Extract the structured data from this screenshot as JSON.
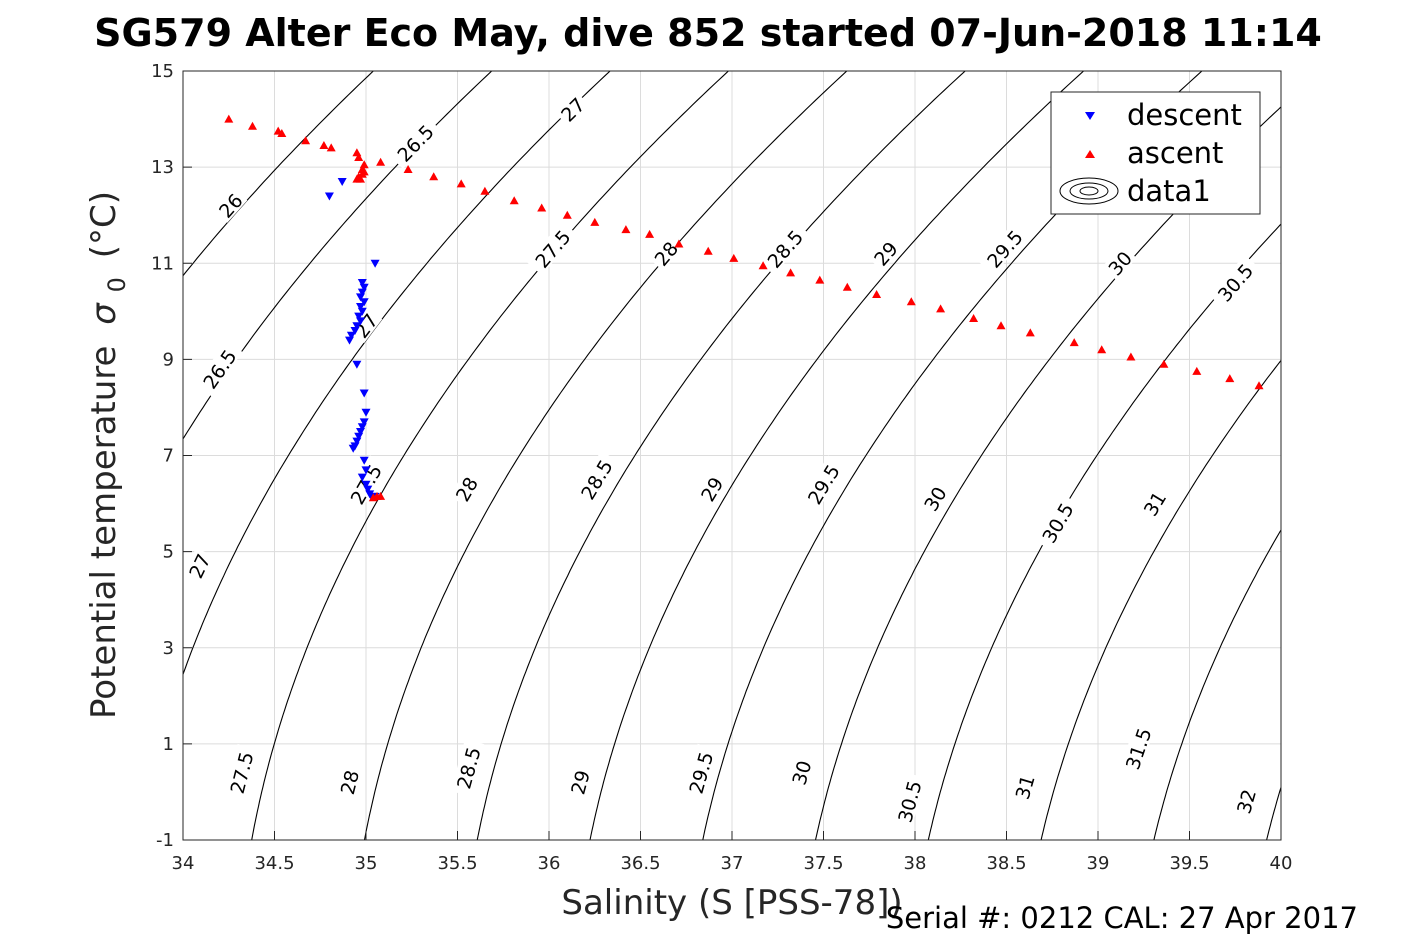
{
  "chart_data": {
    "type": "scatter",
    "title": "SG579 Alter Eco May, dive 852 started 07-Jun-2018 11:14",
    "xlabel": "Salinity (S [PSS-78])",
    "ylabel": "Potential temperature",
    "ylabel_symbol": "σ",
    "ylabel_subscript": "0",
    "ylabel_unit": "(°C)",
    "xlim": [
      34,
      40
    ],
    "ylim": [
      -1,
      15
    ],
    "x_ticks": [
      34,
      34.5,
      35,
      35.5,
      36,
      36.5,
      37,
      37.5,
      38,
      38.5,
      39,
      39.5,
      40
    ],
    "x_tick_labels": [
      "34",
      "34.5",
      "35",
      "35.5",
      "36",
      "36.5",
      "37",
      "37.5",
      "38",
      "38.5",
      "39",
      "39.5",
      "40"
    ],
    "y_ticks": [
      -1,
      1,
      3,
      5,
      7,
      9,
      11,
      13,
      15
    ],
    "y_tick_labels": [
      "-1",
      "1",
      "3",
      "5",
      "7",
      "9",
      "11",
      "13",
      "15"
    ],
    "grid": true,
    "legend_position": "top-right",
    "legend": [
      "descent",
      "ascent",
      "data1"
    ],
    "footer": "Serial #: 0212  CAL: 27 Apr 2017",
    "colors": {
      "descent": "#0000ff",
      "ascent": "#ff0000",
      "contour": "#000000",
      "grid": "#dcdcdc"
    },
    "contours": {
      "levels": [
        26,
        26.5,
        27,
        27.5,
        28,
        28.5,
        29,
        29.5,
        30,
        30.5,
        31,
        31.5,
        32
      ],
      "label_texts": [
        "26",
        "26.5",
        "27",
        "27.5",
        "28",
        "28.5",
        "29",
        "29.5",
        "30",
        "30.5",
        "31",
        "31.5",
        "32"
      ],
      "labels": [
        {
          "level": 26,
          "text": "26",
          "s": 34.26,
          "t": 12.2
        },
        {
          "level": 26.5,
          "text": "26.5",
          "s": 35.27,
          "t": 13.5
        },
        {
          "level": 26.5,
          "text": "26.5",
          "s": 34.2,
          "t": 8.8
        },
        {
          "level": 27,
          "text": "27",
          "s": 36.13,
          "t": 14.2
        },
        {
          "level": 27,
          "text": "27",
          "s": 35.0,
          "t": 9.7
        },
        {
          "level": 27,
          "text": "27",
          "s": 34.09,
          "t": 4.7
        },
        {
          "level": 27.5,
          "text": "27.5",
          "s": 36.02,
          "t": 11.3
        },
        {
          "level": 27.5,
          "text": "27.5",
          "s": 35.0,
          "t": 6.4
        },
        {
          "level": 27.5,
          "text": "27.5",
          "s": 34.32,
          "t": 0.4
        },
        {
          "level": 28,
          "text": "28",
          "s": 36.64,
          "t": 11.2
        },
        {
          "level": 28,
          "text": "28",
          "s": 35.55,
          "t": 6.3
        },
        {
          "level": 28,
          "text": "28",
          "s": 34.91,
          "t": 0.2
        },
        {
          "level": 28.5,
          "text": "28.5",
          "s": 37.29,
          "t": 11.3
        },
        {
          "level": 28.5,
          "text": "28.5",
          "s": 36.26,
          "t": 6.5
        },
        {
          "level": 28.5,
          "text": "28.5",
          "s": 35.56,
          "t": 0.5
        },
        {
          "level": 29,
          "text": "29",
          "s": 37.84,
          "t": 11.2
        },
        {
          "level": 29,
          "text": "29",
          "s": 36.89,
          "t": 6.3
        },
        {
          "level": 29,
          "text": "29",
          "s": 36.17,
          "t": 0.2
        },
        {
          "level": 29.5,
          "text": "29.5",
          "s": 38.49,
          "t": 11.3
        },
        {
          "level": 29.5,
          "text": "29.5",
          "s": 37.5,
          "t": 6.4
        },
        {
          "level": 29.5,
          "text": "29.5",
          "s": 36.83,
          "t": 0.4
        },
        {
          "level": 30,
          "text": "30",
          "s": 39.12,
          "t": 11.0
        },
        {
          "level": 30,
          "text": "30",
          "s": 38.11,
          "t": 6.1
        },
        {
          "level": 30,
          "text": "30",
          "s": 37.38,
          "t": 0.4
        },
        {
          "level": 30.5,
          "text": "30.5",
          "s": 39.75,
          "t": 10.6
        },
        {
          "level": 30.5,
          "text": "30.5",
          "s": 38.78,
          "t": 5.6
        },
        {
          "level": 30.5,
          "text": "30.5",
          "s": 37.97,
          "t": -0.2
        },
        {
          "level": 31,
          "text": "31",
          "s": 39.31,
          "t": 6.0
        },
        {
          "level": 31,
          "text": "31",
          "s": 38.6,
          "t": 0.1
        },
        {
          "level": 31.5,
          "text": "31.5",
          "s": 39.22,
          "t": 0.9
        },
        {
          "level": 32,
          "text": "32",
          "s": 39.81,
          "t": -0.2
        }
      ]
    },
    "series": [
      {
        "name": "descent",
        "marker": "triangle-down",
        "points": [
          [
            34.8,
            12.4
          ],
          [
            34.87,
            12.7
          ],
          [
            35.05,
            11.0
          ],
          [
            34.98,
            10.6
          ],
          [
            34.99,
            10.5
          ],
          [
            34.98,
            10.4
          ],
          [
            34.97,
            10.3
          ],
          [
            34.99,
            10.2
          ],
          [
            34.97,
            10.1
          ],
          [
            34.98,
            10.0
          ],
          [
            34.96,
            9.9
          ],
          [
            34.97,
            9.8
          ],
          [
            34.95,
            9.7
          ],
          [
            34.94,
            9.6
          ],
          [
            34.92,
            9.5
          ],
          [
            34.91,
            9.4
          ],
          [
            34.95,
            8.9
          ],
          [
            34.99,
            8.3
          ],
          [
            35.0,
            7.9
          ],
          [
            34.99,
            7.7
          ],
          [
            34.98,
            7.6
          ],
          [
            34.97,
            7.5
          ],
          [
            34.96,
            7.4
          ],
          [
            34.95,
            7.3
          ],
          [
            34.94,
            7.2
          ],
          [
            34.93,
            7.15
          ],
          [
            34.99,
            6.9
          ],
          [
            35.0,
            6.7
          ],
          [
            34.98,
            6.55
          ],
          [
            35.0,
            6.4
          ],
          [
            35.01,
            6.3
          ],
          [
            35.02,
            6.2
          ],
          [
            35.03,
            6.15
          ],
          [
            35.05,
            6.15
          ]
        ]
      },
      {
        "name": "ascent",
        "marker": "triangle-up",
        "points": [
          [
            34.25,
            14.0
          ],
          [
            34.38,
            13.85
          ],
          [
            34.52,
            13.75
          ],
          [
            34.54,
            13.7
          ],
          [
            34.67,
            13.55
          ],
          [
            34.77,
            13.45
          ],
          [
            34.81,
            13.4
          ],
          [
            34.95,
            13.3
          ],
          [
            34.96,
            13.2
          ],
          [
            34.99,
            13.05
          ],
          [
            34.98,
            12.95
          ],
          [
            34.98,
            12.85
          ],
          [
            34.96,
            12.8
          ],
          [
            34.95,
            12.75
          ],
          [
            34.97,
            12.75
          ],
          [
            34.99,
            12.9
          ],
          [
            35.08,
            13.1
          ],
          [
            35.23,
            12.95
          ],
          [
            35.37,
            12.8
          ],
          [
            35.52,
            12.65
          ],
          [
            35.65,
            12.5
          ],
          [
            35.81,
            12.3
          ],
          [
            35.96,
            12.15
          ],
          [
            36.1,
            12.0
          ],
          [
            36.25,
            11.85
          ],
          [
            36.42,
            11.7
          ],
          [
            36.55,
            11.6
          ],
          [
            36.71,
            11.4
          ],
          [
            36.87,
            11.25
          ],
          [
            37.01,
            11.1
          ],
          [
            37.17,
            10.95
          ],
          [
            37.32,
            10.8
          ],
          [
            37.48,
            10.65
          ],
          [
            37.63,
            10.5
          ],
          [
            37.79,
            10.35
          ],
          [
            37.98,
            10.2
          ],
          [
            38.14,
            10.05
          ],
          [
            38.32,
            9.85
          ],
          [
            38.47,
            9.7
          ],
          [
            38.63,
            9.55
          ],
          [
            38.87,
            9.35
          ],
          [
            39.02,
            9.2
          ],
          [
            39.18,
            9.05
          ],
          [
            39.36,
            8.9
          ],
          [
            39.54,
            8.75
          ],
          [
            39.72,
            8.6
          ],
          [
            39.88,
            8.45
          ],
          [
            35.04,
            6.12
          ],
          [
            35.06,
            6.15
          ],
          [
            35.08,
            6.15
          ]
        ]
      }
    ]
  }
}
